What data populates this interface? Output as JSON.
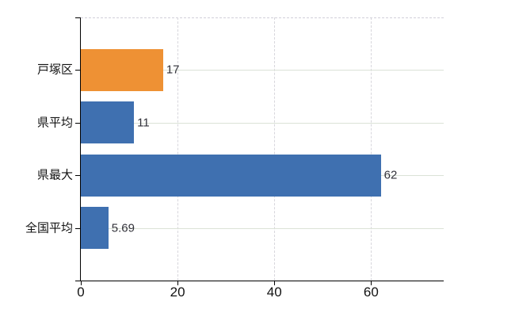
{
  "chart_data": {
    "type": "bar",
    "orientation": "horizontal",
    "title": "",
    "xlabel": "",
    "ylabel": "",
    "categories": [
      "戸塚区",
      "県平均",
      "県最大",
      "全国平均"
    ],
    "values": [
      17,
      11,
      62,
      5.69
    ],
    "value_labels": [
      "17",
      "11",
      "62",
      "5.69"
    ],
    "bar_colors": [
      "#ee9134",
      "#3f70b0",
      "#3f70b0",
      "#3f70b0"
    ],
    "x_ticks": [
      0,
      20,
      40,
      60
    ],
    "x_tick_labels": [
      "0",
      "20",
      "40",
      "60"
    ],
    "xlim": [
      0,
      75
    ],
    "grid": true,
    "legend_position": "none"
  },
  "colors": {
    "bar_orange": "#ee9134",
    "bar_blue": "#3f70b0",
    "axis": "#000000",
    "grid_horizontal": "#dbe2d7",
    "grid_vertical": "#d7d6dc",
    "plot_top_border": "#d2cfd9",
    "tick_text": "#121212",
    "value_text": "#32323a",
    "background": "#ffffff"
  }
}
